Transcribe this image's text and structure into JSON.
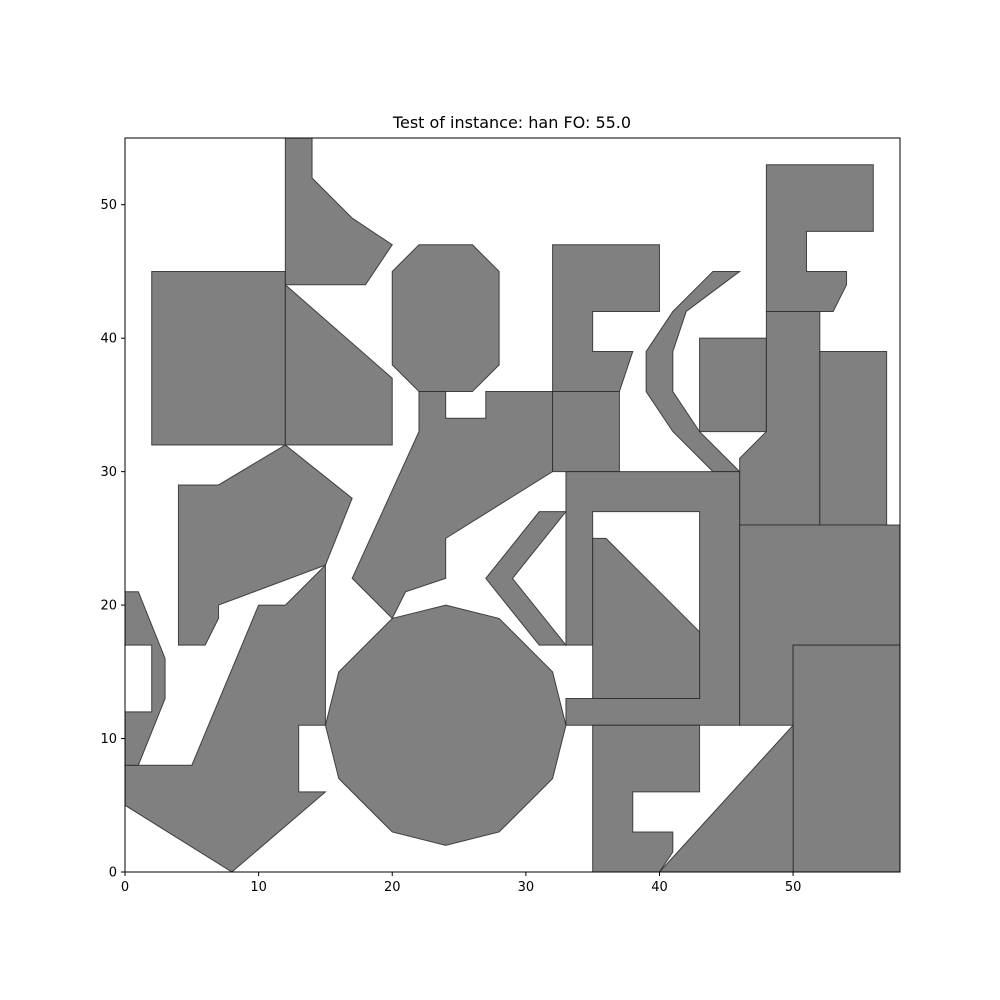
{
  "chart_data": {
    "type": "polygon-packing",
    "title": "Test of instance: han  FO: 55.0",
    "xlabel": "",
    "ylabel": "",
    "xlim": [
      0,
      58
    ],
    "ylim": [
      0,
      55
    ],
    "xticks": [
      0,
      10,
      20,
      30,
      40,
      50
    ],
    "yticks": [
      0,
      10,
      20,
      30,
      40,
      50
    ],
    "grid": false,
    "fill_color": "#808080",
    "edge_color": "#2a2a2a",
    "polygons": [
      {
        "name": "square-left",
        "points": [
          [
            2,
            45
          ],
          [
            12,
            45
          ],
          [
            12,
            32
          ],
          [
            2,
            32
          ]
        ]
      },
      {
        "name": "trapezoid-upper",
        "points": [
          [
            12,
            44
          ],
          [
            20,
            37
          ],
          [
            20,
            32
          ],
          [
            12,
            32
          ]
        ]
      },
      {
        "name": "boot-top",
        "points": [
          [
            12,
            55
          ],
          [
            14,
            55
          ],
          [
            14,
            52
          ],
          [
            17,
            49
          ],
          [
            20,
            47
          ],
          [
            18,
            44
          ],
          [
            12,
            44
          ]
        ]
      },
      {
        "name": "octagon-top",
        "points": [
          [
            22,
            47
          ],
          [
            26,
            47
          ],
          [
            28,
            45
          ],
          [
            28,
            38
          ],
          [
            26,
            36
          ],
          [
            22,
            36
          ],
          [
            20,
            38
          ],
          [
            20,
            45
          ]
        ]
      },
      {
        "name": "pentagon-left",
        "points": [
          [
            4,
            29
          ],
          [
            7,
            29
          ],
          [
            12,
            32
          ],
          [
            17,
            28
          ],
          [
            15,
            23
          ],
          [
            7,
            20
          ],
          [
            7,
            19
          ],
          [
            6,
            17
          ],
          [
            4,
            17
          ]
        ]
      },
      {
        "name": "slanted-piece",
        "points": [
          [
            22,
            36
          ],
          [
            24,
            36
          ],
          [
            24,
            34
          ],
          [
            27,
            34
          ],
          [
            27,
            36
          ],
          [
            32,
            36
          ],
          [
            32,
            30
          ],
          [
            24,
            25
          ],
          [
            24,
            22
          ],
          [
            21,
            21
          ],
          [
            20,
            19
          ],
          [
            17,
            22
          ],
          [
            22,
            33
          ]
        ]
      },
      {
        "name": "bracket-top",
        "points": [
          [
            32,
            47
          ],
          [
            40,
            47
          ],
          [
            40,
            42
          ],
          [
            35,
            42
          ],
          [
            35,
            39
          ],
          [
            38,
            39
          ],
          [
            37,
            36
          ],
          [
            32,
            36
          ]
        ]
      },
      {
        "name": "small-square",
        "points": [
          [
            32,
            36
          ],
          [
            37,
            36
          ],
          [
            37,
            30
          ],
          [
            32,
            30
          ]
        ]
      },
      {
        "name": "curved-arm",
        "points": [
          [
            44,
            45
          ],
          [
            46,
            45
          ],
          [
            42,
            42
          ],
          [
            41,
            39
          ],
          [
            41,
            36
          ],
          [
            43,
            33
          ],
          [
            46,
            30
          ],
          [
            44,
            30
          ],
          [
            41,
            33
          ],
          [
            39,
            36
          ],
          [
            39,
            39
          ],
          [
            41,
            42
          ]
        ]
      },
      {
        "name": "right-square",
        "points": [
          [
            43,
            40
          ],
          [
            48,
            40
          ],
          [
            48,
            33
          ],
          [
            43,
            33
          ]
        ]
      },
      {
        "name": "top-right-bracket",
        "points": [
          [
            48,
            53
          ],
          [
            56,
            53
          ],
          [
            56,
            48
          ],
          [
            51,
            48
          ],
          [
            51,
            45
          ],
          [
            54,
            45
          ],
          [
            54,
            44
          ],
          [
            53,
            42
          ],
          [
            48,
            42
          ]
        ]
      },
      {
        "name": "tall-column",
        "points": [
          [
            48,
            42
          ],
          [
            52,
            42
          ],
          [
            52,
            26
          ],
          [
            46,
            26
          ],
          [
            46,
            31
          ],
          [
            48,
            33
          ]
        ]
      },
      {
        "name": "column-right",
        "points": [
          [
            52,
            39
          ],
          [
            57,
            39
          ],
          [
            57,
            26
          ],
          [
            52,
            26
          ]
        ]
      },
      {
        "name": "chevron",
        "points": [
          [
            31,
            27
          ],
          [
            33,
            27
          ],
          [
            29,
            22
          ],
          [
            33,
            17
          ],
          [
            31,
            17
          ],
          [
            27,
            22
          ]
        ]
      },
      {
        "name": "frame",
        "points": [
          [
            33,
            30
          ],
          [
            46,
            30
          ],
          [
            46,
            11
          ],
          [
            33,
            11
          ],
          [
            33,
            13
          ],
          [
            43,
            13
          ],
          [
            43,
            27
          ],
          [
            35,
            27
          ],
          [
            35,
            17
          ],
          [
            33,
            17
          ]
        ]
      },
      {
        "name": "triangle-inner",
        "points": [
          [
            35,
            25
          ],
          [
            36,
            25
          ],
          [
            43,
            18
          ],
          [
            43,
            13
          ],
          [
            35,
            13
          ]
        ]
      },
      {
        "name": "big-square",
        "points": [
          [
            46,
            26
          ],
          [
            58,
            26
          ],
          [
            58,
            17
          ],
          [
            50,
            17
          ],
          [
            50,
            11
          ],
          [
            46,
            11
          ]
        ]
      },
      {
        "name": "square-bottom-right",
        "points": [
          [
            50,
            17
          ],
          [
            58,
            17
          ],
          [
            58,
            0
          ],
          [
            50,
            0
          ]
        ]
      },
      {
        "name": "triangle-bottom",
        "points": [
          [
            50,
            11
          ],
          [
            50,
            0
          ],
          [
            40,
            0
          ]
        ]
      },
      {
        "name": "c-piece-bottom",
        "points": [
          [
            35,
            11
          ],
          [
            43,
            11
          ],
          [
            43,
            6
          ],
          [
            38,
            6
          ],
          [
            38,
            3
          ],
          [
            41,
            3
          ],
          [
            41,
            1.5
          ],
          [
            40,
            0
          ],
          [
            35,
            0
          ]
        ]
      },
      {
        "name": "dodecagon",
        "points": [
          [
            24,
            20
          ],
          [
            28,
            19
          ],
          [
            32,
            15
          ],
          [
            33,
            11
          ],
          [
            32,
            7
          ],
          [
            28,
            3
          ],
          [
            24,
            2
          ],
          [
            20,
            3
          ],
          [
            16,
            7
          ],
          [
            15,
            11
          ],
          [
            16,
            15
          ],
          [
            20,
            19
          ]
        ]
      },
      {
        "name": "arrow-piece",
        "points": [
          [
            10,
            20
          ],
          [
            12,
            20
          ],
          [
            15,
            23
          ],
          [
            15,
            11
          ],
          [
            13,
            11
          ],
          [
            13,
            6
          ],
          [
            15,
            6
          ],
          [
            8,
            0
          ],
          [
            0,
            5
          ],
          [
            0,
            8
          ],
          [
            5,
            8
          ]
        ]
      },
      {
        "name": "edge-bracket",
        "points": [
          [
            0,
            21
          ],
          [
            1,
            21
          ],
          [
            3,
            16
          ],
          [
            3,
            13
          ],
          [
            1,
            8
          ],
          [
            0,
            8
          ],
          [
            0,
            12
          ],
          [
            2,
            12
          ],
          [
            2,
            17
          ],
          [
            0,
            17
          ]
        ]
      }
    ]
  }
}
